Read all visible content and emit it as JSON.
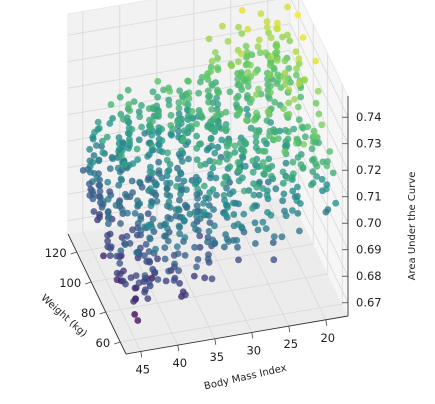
{
  "chart_data": {
    "type": "scatter",
    "projection": "3d",
    "xlabel": "Weight (kg)",
    "ylabel": "Body Mass Index",
    "zlabel": "Area Under the Curve",
    "x_ticks": [
      "60",
      "80",
      "100",
      "120"
    ],
    "y_ticks": [
      "20",
      "25",
      "30",
      "35",
      "40",
      "45"
    ],
    "z_ticks": [
      "0.67",
      "0.68",
      "0.69",
      "0.70",
      "0.71",
      "0.72",
      "0.73",
      "0.74"
    ],
    "xlim": [
      52,
      132
    ],
    "ylim": [
      17,
      47
    ],
    "zlim": [
      0.665,
      0.748
    ],
    "colormap": "viridis",
    "color_by": "z",
    "grid": true,
    "point_count": 900,
    "distribution": {
      "weight_range": [
        55,
        130
      ],
      "bmi_range": [
        18,
        46
      ],
      "auc_range": [
        0.667,
        0.746
      ],
      "trend": "Area Under the Curve increases as Body Mass Index decreases and Weight increases"
    },
    "colors": {
      "pane": "#f2f2f2",
      "grid": "#d8d8d8",
      "viridis": [
        "#440154",
        "#3b528b",
        "#21918c",
        "#5ec962",
        "#fde725"
      ]
    }
  }
}
